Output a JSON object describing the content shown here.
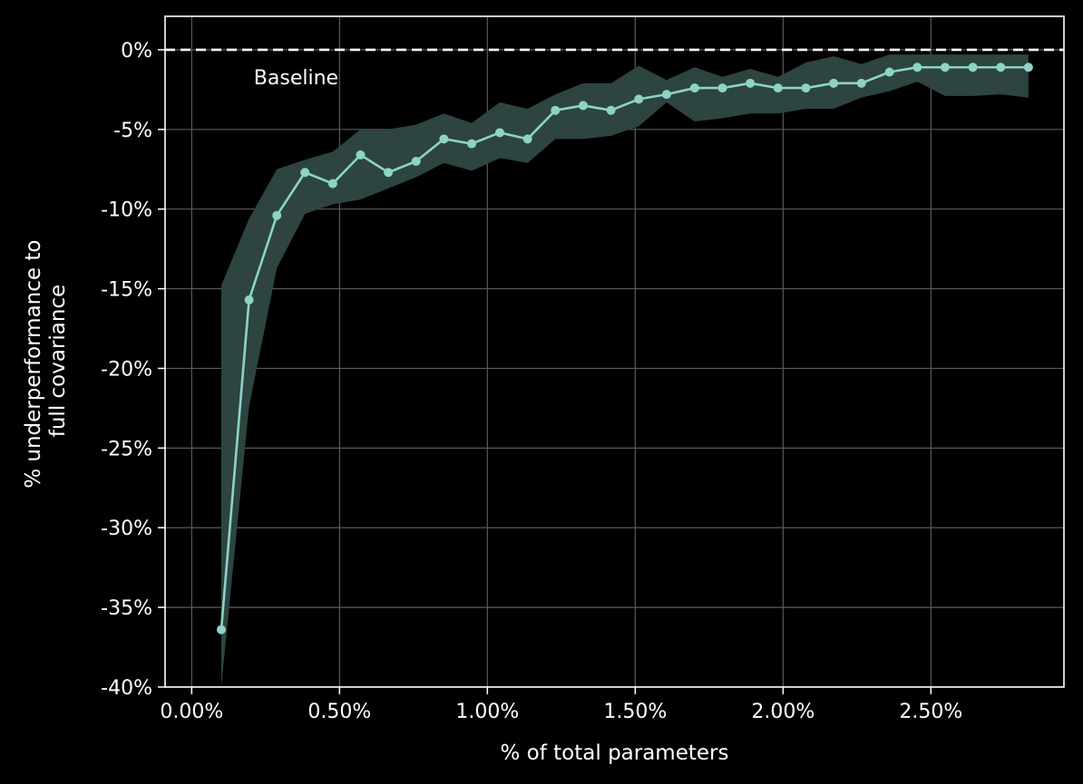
{
  "chart_data": {
    "type": "line",
    "title": "",
    "xlabel": "% of total parameters",
    "ylabel_lines": [
      "% underperformance to",
      "full covariance"
    ],
    "xlim": [
      -0.0009,
      0.0295
    ],
    "ylim": [
      -40,
      2.1
    ],
    "x_ticks": [
      {
        "value": 0.0,
        "label": "0.00%"
      },
      {
        "value": 0.005,
        "label": "0.50%"
      },
      {
        "value": 0.01,
        "label": "1.00%"
      },
      {
        "value": 0.015,
        "label": "1.50%"
      },
      {
        "value": 0.02,
        "label": "2.00%"
      },
      {
        "value": 0.025,
        "label": "2.50%"
      }
    ],
    "y_ticks": [
      {
        "value": 0,
        "label": "0%"
      },
      {
        "value": -5,
        "label": "-5%"
      },
      {
        "value": -10,
        "label": "-10%"
      },
      {
        "value": -15,
        "label": "-15%"
      },
      {
        "value": -20,
        "label": "-20%"
      },
      {
        "value": -25,
        "label": "-25%"
      },
      {
        "value": -30,
        "label": "-30%"
      },
      {
        "value": -35,
        "label": "-35%"
      },
      {
        "value": -40,
        "label": "-40%"
      }
    ],
    "grid": true,
    "baseline": {
      "y": 0,
      "label": "Baseline",
      "label_x": 0.0021,
      "label_y": -1.7
    },
    "colors": {
      "background": "#000000",
      "line": "#8dd3c7",
      "band": "#2d4440",
      "grid": "#5a5a5a",
      "axes": "#ffffff",
      "baseline": "#ffffff"
    },
    "series": [
      {
        "x": [
          0.001,
          0.00194,
          0.00288,
          0.00383,
          0.00477,
          0.00571,
          0.00665,
          0.00759,
          0.00853,
          0.00947,
          0.01042,
          0.01136,
          0.0123,
          0.01324,
          0.01418,
          0.01512,
          0.01606,
          0.01701,
          0.01795,
          0.01889,
          0.01983,
          0.02077,
          0.02171,
          0.02265,
          0.0236,
          0.02454,
          0.02548,
          0.02642,
          0.02736,
          0.0283
        ],
        "y": [
          -36.4,
          -15.7,
          -10.4,
          -7.7,
          -8.4,
          -6.6,
          -7.7,
          -7.0,
          -5.6,
          -5.9,
          -5.2,
          -5.6,
          -3.8,
          -3.5,
          -3.8,
          -3.1,
          -2.8,
          -2.4,
          -2.4,
          -2.1,
          -2.4,
          -2.4,
          -2.1,
          -2.1,
          -1.4,
          -1.1,
          -1.1,
          -1.1,
          -1.1,
          -1.1
        ],
        "band_upper": [
          -14.8,
          -10.6,
          -7.5,
          -6.9,
          -6.4,
          -5.0,
          -5.0,
          -4.7,
          -4.0,
          -4.6,
          -3.3,
          -3.7,
          -2.8,
          -2.1,
          -2.1,
          -1.0,
          -1.9,
          -1.1,
          -1.7,
          -1.2,
          -1.7,
          -0.8,
          -0.4,
          -0.9,
          -0.3,
          -0.3,
          -0.3,
          -0.3,
          -0.3,
          -0.3
        ],
        "band_lower": [
          -40.0,
          -22.4,
          -13.7,
          -10.3,
          -9.7,
          -9.4,
          -8.7,
          -8.0,
          -7.1,
          -7.6,
          -6.8,
          -7.1,
          -5.6,
          -5.6,
          -5.4,
          -4.8,
          -3.3,
          -4.5,
          -4.3,
          -4.0,
          -4.0,
          -3.7,
          -3.7,
          -3.0,
          -2.6,
          -2.0,
          -2.9,
          -2.9,
          -2.8,
          -3.0
        ]
      }
    ]
  }
}
